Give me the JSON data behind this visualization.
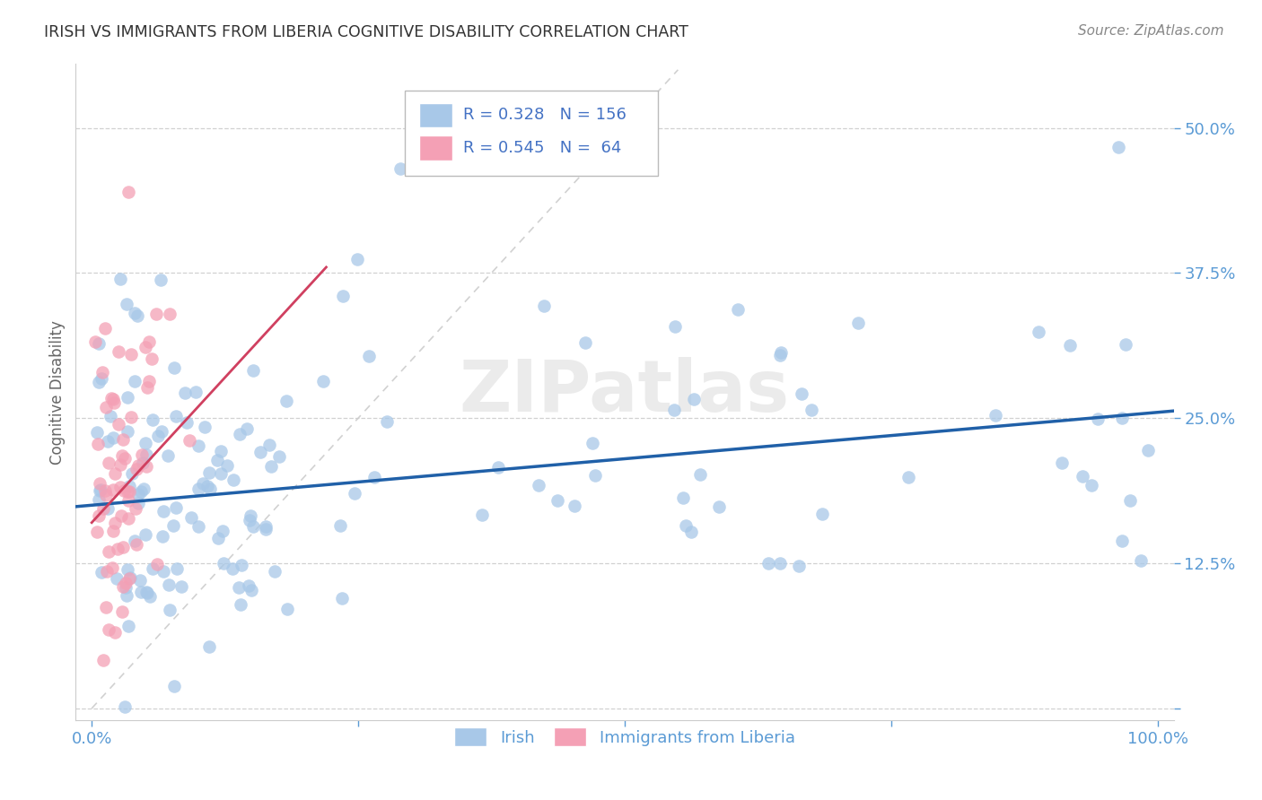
{
  "title": "IRISH VS IMMIGRANTS FROM LIBERIA COGNITIVE DISABILITY CORRELATION CHART",
  "source": "Source: ZipAtlas.com",
  "tick_color": "#5b9bd5",
  "ylabel": "Cognitive Disability",
  "irish_color": "#a8c8e8",
  "liberia_color": "#f4a0b5",
  "irish_line_color": "#2060a8",
  "liberia_line_color": "#d04060",
  "diag_line_color": "#cccccc",
  "legend_text_color": "#4472c4",
  "irish_label": "Irish",
  "liberia_label": "Immigrants from Liberia",
  "watermark": "ZIPatlas",
  "irish_R": 0.328,
  "irish_N": 156,
  "liberia_R": 0.545,
  "liberia_N": 64,
  "irish_slope": 0.08,
  "irish_intercept": 0.175,
  "liberia_slope": 1.0,
  "liberia_intercept": 0.16,
  "xlim": [
    -0.015,
    1.015
  ],
  "ylim": [
    -0.01,
    0.555
  ],
  "y_ticks": [
    0.0,
    0.125,
    0.25,
    0.375,
    0.5
  ],
  "y_tick_labels": [
    "",
    "12.5%",
    "25.0%",
    "37.5%",
    "50.0%"
  ],
  "x_ticks": [
    0.0,
    0.25,
    0.5,
    0.75,
    1.0
  ],
  "x_tick_labels": [
    "0.0%",
    "",
    "",
    "",
    "100.0%"
  ]
}
